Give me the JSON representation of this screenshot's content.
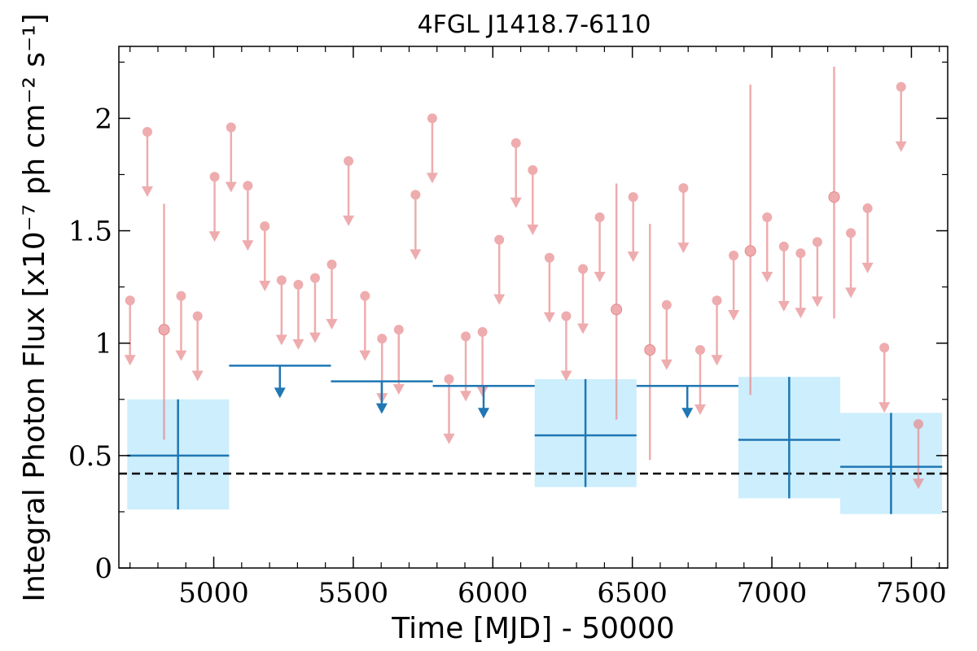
{
  "chart_data": {
    "type": "scatter",
    "title": "4FGL J1418.7-6110",
    "xlabel": "Time [MJD] - 50000",
    "ylabel": "Integral Photon Flux [x10⁻⁷ ph cm⁻² s⁻¹]",
    "xlim": [
      4660,
      7630
    ],
    "ylim": [
      0,
      2.32
    ],
    "xticks": [
      5000,
      5500,
      6000,
      6500,
      7000,
      7500
    ],
    "yticks": [
      0,
      0.5,
      1,
      1.5,
      2
    ],
    "ytick_labels": [
      "0",
      "0.5",
      "1",
      "1.5",
      "2"
    ],
    "grid": false,
    "colors": {
      "fine_bins": "#e88a8c",
      "coarse_bins": "#1f77b4",
      "error_band": "#cdeefc",
      "reference_line": "#000000"
    },
    "reference_line": {
      "y": 0.42,
      "style": "dashed"
    },
    "fine_bins": [
      {
        "x": 4700,
        "y": 1.19,
        "type": "ul"
      },
      {
        "x": 4762,
        "y": 1.94,
        "type": "ul"
      },
      {
        "x": 4822,
        "y": 1.06,
        "type": "point",
        "ylow": 0.57,
        "yhigh": 1.62
      },
      {
        "x": 4883,
        "y": 1.21,
        "type": "ul"
      },
      {
        "x": 4942,
        "y": 1.12,
        "type": "ul"
      },
      {
        "x": 5003,
        "y": 1.74,
        "type": "ul"
      },
      {
        "x": 5062,
        "y": 1.96,
        "type": "ul"
      },
      {
        "x": 5122,
        "y": 1.7,
        "type": "ul"
      },
      {
        "x": 5183,
        "y": 1.52,
        "type": "ul"
      },
      {
        "x": 5243,
        "y": 1.28,
        "type": "ul"
      },
      {
        "x": 5303,
        "y": 1.26,
        "type": "ul"
      },
      {
        "x": 5363,
        "y": 1.29,
        "type": "ul"
      },
      {
        "x": 5423,
        "y": 1.35,
        "type": "ul"
      },
      {
        "x": 5483,
        "y": 1.81,
        "type": "ul"
      },
      {
        "x": 5542,
        "y": 1.21,
        "type": "ul"
      },
      {
        "x": 5603,
        "y": 1.02,
        "type": "ul"
      },
      {
        "x": 5663,
        "y": 1.06,
        "type": "ul"
      },
      {
        "x": 5723,
        "y": 1.66,
        "type": "ul"
      },
      {
        "x": 5783,
        "y": 2.0,
        "type": "ul"
      },
      {
        "x": 5843,
        "y": 0.84,
        "type": "ul"
      },
      {
        "x": 5903,
        "y": 1.03,
        "type": "ul"
      },
      {
        "x": 5963,
        "y": 1.05,
        "type": "ul"
      },
      {
        "x": 6023,
        "y": 1.46,
        "type": "ul"
      },
      {
        "x": 6083,
        "y": 1.89,
        "type": "ul"
      },
      {
        "x": 6143,
        "y": 1.77,
        "type": "ul"
      },
      {
        "x": 6203,
        "y": 1.38,
        "type": "ul"
      },
      {
        "x": 6263,
        "y": 1.12,
        "type": "ul"
      },
      {
        "x": 6323,
        "y": 1.33,
        "type": "ul"
      },
      {
        "x": 6383,
        "y": 1.56,
        "type": "ul"
      },
      {
        "x": 6443,
        "y": 1.15,
        "type": "point",
        "ylow": 0.66,
        "yhigh": 1.71
      },
      {
        "x": 6503,
        "y": 1.65,
        "type": "ul"
      },
      {
        "x": 6563,
        "y": 0.97,
        "type": "point",
        "ylow": 0.48,
        "yhigh": 1.53
      },
      {
        "x": 6623,
        "y": 1.17,
        "type": "ul"
      },
      {
        "x": 6683,
        "y": 1.69,
        "type": "ul"
      },
      {
        "x": 6743,
        "y": 0.97,
        "type": "ul"
      },
      {
        "x": 6803,
        "y": 1.19,
        "type": "ul"
      },
      {
        "x": 6863,
        "y": 1.39,
        "type": "ul"
      },
      {
        "x": 6923,
        "y": 1.41,
        "type": "point",
        "ylow": 0.77,
        "yhigh": 2.15
      },
      {
        "x": 6983,
        "y": 1.56,
        "type": "ul"
      },
      {
        "x": 7043,
        "y": 1.43,
        "type": "ul"
      },
      {
        "x": 7103,
        "y": 1.4,
        "type": "ul"
      },
      {
        "x": 7163,
        "y": 1.45,
        "type": "ul"
      },
      {
        "x": 7223,
        "y": 1.65,
        "type": "point",
        "ylow": 1.11,
        "yhigh": 2.23
      },
      {
        "x": 7283,
        "y": 1.49,
        "type": "ul"
      },
      {
        "x": 7343,
        "y": 1.6,
        "type": "ul"
      },
      {
        "x": 7403,
        "y": 0.98,
        "type": "ul"
      },
      {
        "x": 7463,
        "y": 2.14,
        "type": "ul"
      },
      {
        "x": 7525,
        "y": 0.64,
        "type": "ul"
      }
    ],
    "coarse_bins": [
      {
        "xmin": 4690,
        "xmax": 5055,
        "x": 4872,
        "y": 0.5,
        "type": "point",
        "ylow": 0.26,
        "yhigh": 0.75
      },
      {
        "xmin": 5055,
        "xmax": 5420,
        "x": 5237,
        "y": 0.9,
        "type": "ul"
      },
      {
        "xmin": 5420,
        "xmax": 5785,
        "x": 5602,
        "y": 0.83,
        "type": "ul"
      },
      {
        "xmin": 5785,
        "xmax": 6150,
        "x": 5967,
        "y": 0.81,
        "type": "ul"
      },
      {
        "xmin": 6150,
        "xmax": 6515,
        "x": 6332,
        "y": 0.59,
        "type": "point",
        "ylow": 0.36,
        "yhigh": 0.84
      },
      {
        "xmin": 6515,
        "xmax": 6880,
        "x": 6697,
        "y": 0.81,
        "type": "ul"
      },
      {
        "xmin": 6880,
        "xmax": 7245,
        "x": 7062,
        "y": 0.57,
        "type": "point",
        "ylow": 0.31,
        "yhigh": 0.85
      },
      {
        "xmin": 7245,
        "xmax": 7610,
        "x": 7427,
        "y": 0.45,
        "type": "point",
        "ylow": 0.24,
        "yhigh": 0.69
      }
    ]
  }
}
